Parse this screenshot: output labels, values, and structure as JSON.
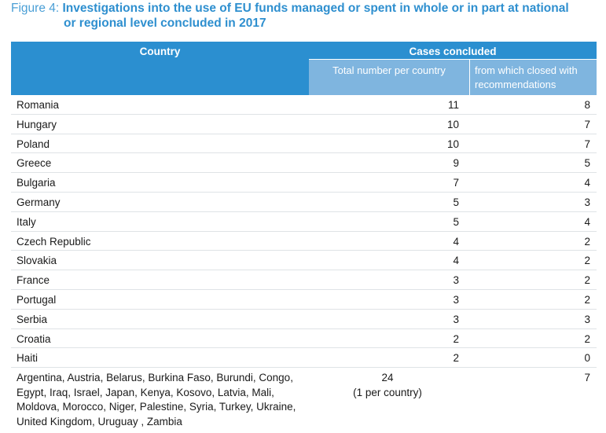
{
  "figure": {
    "label": "Figure 4:",
    "title_line1": "Investigations into the use of EU funds managed or spent in whole or in part at national",
    "title_line2": "or regional level concluded in 2017"
  },
  "table": {
    "header": {
      "country": "Country",
      "cases_concluded": "Cases concluded",
      "total_col": "Total number per country",
      "rec_col_line1": "from which closed with",
      "rec_col_line2": "recommendations"
    },
    "rows": [
      {
        "country": "Romania",
        "total": "11",
        "rec": "8"
      },
      {
        "country": "Hungary",
        "total": "10",
        "rec": "7"
      },
      {
        "country": "Poland",
        "total": "10",
        "rec": "7"
      },
      {
        "country": "Greece",
        "total": "9",
        "rec": "5"
      },
      {
        "country": "Bulgaria",
        "total": "7",
        "rec": "4"
      },
      {
        "country": "Germany",
        "total": "5",
        "rec": "3"
      },
      {
        "country": "Italy",
        "total": "5",
        "rec": "4"
      },
      {
        "country": "Czech Republic",
        "total": "4",
        "rec": "2"
      },
      {
        "country": "Slovakia",
        "total": "4",
        "rec": "2"
      },
      {
        "country": "France",
        "total": "3",
        "rec": "2"
      },
      {
        "country": "Portugal",
        "total": "3",
        "rec": "2"
      },
      {
        "country": "Serbia",
        "total": "3",
        "rec": "3"
      },
      {
        "country": "Croatia",
        "total": "2",
        "rec": "2"
      },
      {
        "country": "Haiti",
        "total": "2",
        "rec": "0"
      }
    ],
    "last_row": {
      "country_lines": [
        "Argentina, Austria, Belarus, Burkina Faso, Burundi, Congo,",
        "Egypt, Iraq, Israel, Japan, Kenya, Kosovo, Latvia, Mali,",
        "Moldova, Morocco, Niger, Palestine, Syria, Turkey, Ukraine,",
        "United Kingdom, Uruguay , Zambia"
      ],
      "total": "24",
      "total_note": "(1 per country)",
      "rec": "7"
    }
  }
}
